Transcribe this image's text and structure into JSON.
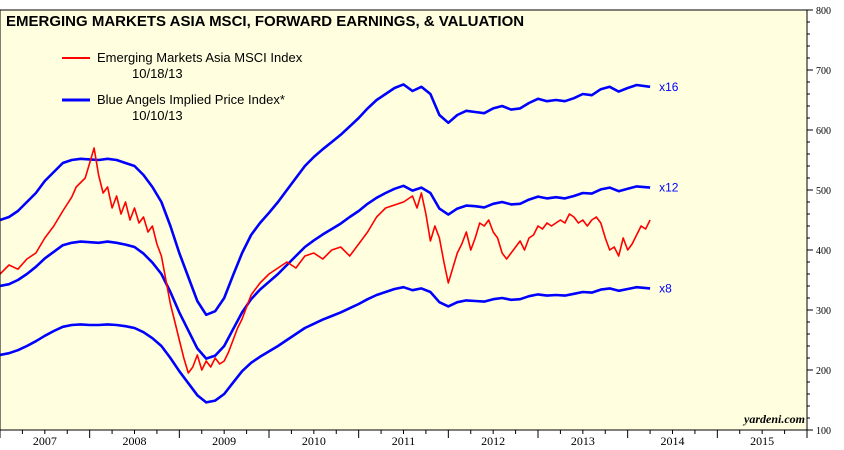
{
  "chart_data": {
    "type": "line",
    "title": "EMERGING MARKETS ASIA MSCI, FORWARD EARNINGS, & VALUATION",
    "source": "yardeni.com",
    "x_ticks": [
      "2007",
      "2008",
      "2009",
      "2010",
      "2011",
      "2012",
      "2013",
      "2014",
      "2015"
    ],
    "x_range": [
      2006.5,
      2015.5
    ],
    "y_ticks": [
      "100",
      "200",
      "300",
      "400",
      "500",
      "600",
      "700",
      "800"
    ],
    "ylim": [
      100,
      800
    ],
    "y_axis_side": "right",
    "grid": false,
    "background_color": "#ffffe0",
    "legend": {
      "placement": "top-left",
      "entries": [
        {
          "label": "Emerging Markets Asia MSCI Index",
          "date": "10/18/13",
          "color": "#ff0000"
        },
        {
          "label": "Blue Angels Implied Price Index*",
          "date": "10/10/13",
          "color": "#0000ff"
        }
      ]
    },
    "series": [
      {
        "name": "Emerging Markets Asia MSCI Index",
        "color": "#ff0000",
        "x": [
          2006.5,
          2006.6,
          2006.7,
          2006.8,
          2006.9,
          2007.0,
          2007.1,
          2007.2,
          2007.3,
          2007.35,
          2007.45,
          2007.5,
          2007.55,
          2007.6,
          2007.65,
          2007.7,
          2007.75,
          2007.8,
          2007.85,
          2007.9,
          2007.95,
          2008.0,
          2008.05,
          2008.1,
          2008.15,
          2008.2,
          2008.25,
          2008.3,
          2008.35,
          2008.4,
          2008.45,
          2008.5,
          2008.55,
          2008.6,
          2008.65,
          2008.7,
          2008.75,
          2008.8,
          2008.85,
          2008.9,
          2008.95,
          2009.0,
          2009.05,
          2009.1,
          2009.15,
          2009.2,
          2009.25,
          2009.3,
          2009.4,
          2009.5,
          2009.6,
          2009.7,
          2009.8,
          2009.9,
          2010.0,
          2010.1,
          2010.2,
          2010.3,
          2010.4,
          2010.5,
          2010.6,
          2010.7,
          2010.8,
          2010.9,
          2011.0,
          2011.05,
          2011.1,
          2011.15,
          2011.2,
          2011.25,
          2011.3,
          2011.35,
          2011.4,
          2011.45,
          2011.5,
          2011.55,
          2011.6,
          2011.65,
          2011.7,
          2011.75,
          2011.8,
          2011.85,
          2011.9,
          2011.95,
          2012.0,
          2012.05,
          2012.1,
          2012.15,
          2012.2,
          2012.25,
          2012.3,
          2012.35,
          2012.4,
          2012.45,
          2012.5,
          2012.55,
          2012.6,
          2012.65,
          2012.7,
          2012.75,
          2012.8,
          2012.85,
          2012.9,
          2012.95,
          2013.0,
          2013.05,
          2013.1,
          2013.15,
          2013.2,
          2013.25,
          2013.3,
          2013.35,
          2013.4,
          2013.45,
          2013.5,
          2013.55,
          2013.6,
          2013.65,
          2013.7,
          2013.75
        ],
        "y": [
          360,
          375,
          368,
          385,
          395,
          420,
          440,
          465,
          488,
          505,
          520,
          545,
          570,
          525,
          495,
          505,
          470,
          490,
          460,
          480,
          450,
          470,
          445,
          455,
          430,
          440,
          410,
          390,
          350,
          310,
          280,
          250,
          220,
          195,
          205,
          225,
          200,
          215,
          205,
          220,
          210,
          215,
          230,
          250,
          270,
          285,
          305,
          325,
          345,
          360,
          370,
          380,
          370,
          390,
          395,
          385,
          400,
          405,
          390,
          410,
          430,
          455,
          470,
          475,
          480,
          485,
          490,
          470,
          495,
          460,
          415,
          440,
          420,
          380,
          345,
          370,
          395,
          410,
          430,
          400,
          420,
          445,
          440,
          450,
          430,
          420,
          395,
          385,
          395,
          405,
          415,
          400,
          420,
          425,
          440,
          435,
          445,
          440,
          445,
          450,
          445,
          460,
          455,
          445,
          450,
          440,
          450,
          455,
          445,
          420,
          400,
          405,
          390,
          420,
          400,
          410,
          425,
          440,
          435,
          450
        ]
      },
      {
        "name": "x16",
        "color": "#0000ff",
        "x": [
          2006.5,
          2006.6,
          2006.7,
          2006.8,
          2006.9,
          2007.0,
          2007.1,
          2007.2,
          2007.3,
          2007.4,
          2007.5,
          2007.6,
          2007.7,
          2007.8,
          2007.9,
          2008.0,
          2008.1,
          2008.2,
          2008.3,
          2008.4,
          2008.5,
          2008.6,
          2008.7,
          2008.8,
          2008.9,
          2009.0,
          2009.1,
          2009.2,
          2009.3,
          2009.4,
          2009.5,
          2009.6,
          2009.7,
          2009.8,
          2009.9,
          2010.0,
          2010.1,
          2010.2,
          2010.3,
          2010.4,
          2010.5,
          2010.6,
          2010.7,
          2010.8,
          2010.9,
          2011.0,
          2011.1,
          2011.2,
          2011.3,
          2011.4,
          2011.5,
          2011.6,
          2011.7,
          2011.8,
          2011.9,
          2012.0,
          2012.1,
          2012.2,
          2012.3,
          2012.4,
          2012.5,
          2012.6,
          2012.7,
          2012.8,
          2012.9,
          2013.0,
          2013.1,
          2013.2,
          2013.3,
          2013.4,
          2013.5,
          2013.6,
          2013.75
        ],
        "y": [
          450,
          455,
          465,
          480,
          495,
          515,
          530,
          545,
          550,
          552,
          551,
          550,
          552,
          550,
          545,
          540,
          525,
          505,
          480,
          440,
          395,
          355,
          315,
          292,
          298,
          320,
          358,
          395,
          425,
          445,
          462,
          480,
          500,
          520,
          540,
          555,
          568,
          580,
          592,
          606,
          620,
          636,
          650,
          660,
          670,
          676,
          665,
          672,
          660,
          625,
          612,
          625,
          632,
          630,
          628,
          636,
          640,
          634,
          636,
          645,
          652,
          648,
          650,
          648,
          653,
          660,
          658,
          668,
          672,
          664,
          670,
          675,
          672
        ]
      },
      {
        "name": "x12",
        "color": "#0000ff",
        "x": [
          2006.5,
          2006.6,
          2006.7,
          2006.8,
          2006.9,
          2007.0,
          2007.1,
          2007.2,
          2007.3,
          2007.4,
          2007.5,
          2007.6,
          2007.7,
          2007.8,
          2007.9,
          2008.0,
          2008.1,
          2008.2,
          2008.3,
          2008.4,
          2008.5,
          2008.6,
          2008.7,
          2008.8,
          2008.9,
          2009.0,
          2009.1,
          2009.2,
          2009.3,
          2009.4,
          2009.5,
          2009.6,
          2009.7,
          2009.8,
          2009.9,
          2010.0,
          2010.1,
          2010.2,
          2010.3,
          2010.4,
          2010.5,
          2010.6,
          2010.7,
          2010.8,
          2010.9,
          2011.0,
          2011.1,
          2011.2,
          2011.3,
          2011.4,
          2011.5,
          2011.6,
          2011.7,
          2011.8,
          2011.9,
          2012.0,
          2012.1,
          2012.2,
          2012.3,
          2012.4,
          2012.5,
          2012.6,
          2012.7,
          2012.8,
          2012.9,
          2013.0,
          2013.1,
          2013.2,
          2013.3,
          2013.4,
          2013.5,
          2013.6,
          2013.75
        ],
        "y": [
          340,
          343,
          350,
          360,
          372,
          386,
          397,
          408,
          412,
          414,
          413,
          412,
          414,
          412,
          409,
          405,
          394,
          379,
          360,
          330,
          296,
          266,
          236,
          219,
          224,
          240,
          268,
          296,
          318,
          334,
          347,
          360,
          375,
          390,
          405,
          416,
          426,
          435,
          444,
          455,
          465,
          477,
          487,
          495,
          502,
          507,
          499,
          504,
          495,
          469,
          459,
          469,
          474,
          473,
          471,
          477,
          480,
          476,
          477,
          484,
          489,
          486,
          488,
          486,
          490,
          495,
          494,
          501,
          504,
          498,
          502,
          506,
          504
        ]
      },
      {
        "name": "x8",
        "color": "#0000ff",
        "x": [
          2006.5,
          2006.6,
          2006.7,
          2006.8,
          2006.9,
          2007.0,
          2007.1,
          2007.2,
          2007.3,
          2007.4,
          2007.5,
          2007.6,
          2007.7,
          2007.8,
          2007.9,
          2008.0,
          2008.1,
          2008.2,
          2008.3,
          2008.4,
          2008.5,
          2008.6,
          2008.7,
          2008.8,
          2008.9,
          2009.0,
          2009.1,
          2009.2,
          2009.3,
          2009.4,
          2009.5,
          2009.6,
          2009.7,
          2009.8,
          2009.9,
          2010.0,
          2010.1,
          2010.2,
          2010.3,
          2010.4,
          2010.5,
          2010.6,
          2010.7,
          2010.8,
          2010.9,
          2011.0,
          2011.1,
          2011.2,
          2011.3,
          2011.4,
          2011.5,
          2011.6,
          2011.7,
          2011.8,
          2011.9,
          2012.0,
          2012.1,
          2012.2,
          2012.3,
          2012.4,
          2012.5,
          2012.6,
          2012.7,
          2012.8,
          2012.9,
          2013.0,
          2013.1,
          2013.2,
          2013.3,
          2013.4,
          2013.5,
          2013.6,
          2013.75
        ],
        "y": [
          225,
          228,
          233,
          240,
          248,
          257,
          265,
          272,
          275,
          276,
          275,
          275,
          276,
          275,
          273,
          270,
          263,
          253,
          240,
          220,
          198,
          178,
          158,
          146,
          149,
          160,
          179,
          198,
          212,
          222,
          231,
          240,
          250,
          260,
          270,
          277,
          284,
          290,
          296,
          303,
          310,
          318,
          325,
          330,
          335,
          338,
          333,
          336,
          330,
          313,
          306,
          313,
          316,
          315,
          314,
          318,
          320,
          317,
          318,
          323,
          326,
          324,
          325,
          324,
          327,
          330,
          329,
          334,
          336,
          332,
          335,
          338,
          336
        ]
      }
    ],
    "line_labels": [
      {
        "text": "x16",
        "series": "x16"
      },
      {
        "text": "x12",
        "series": "x12"
      },
      {
        "text": "x8",
        "series": "x8"
      }
    ]
  }
}
